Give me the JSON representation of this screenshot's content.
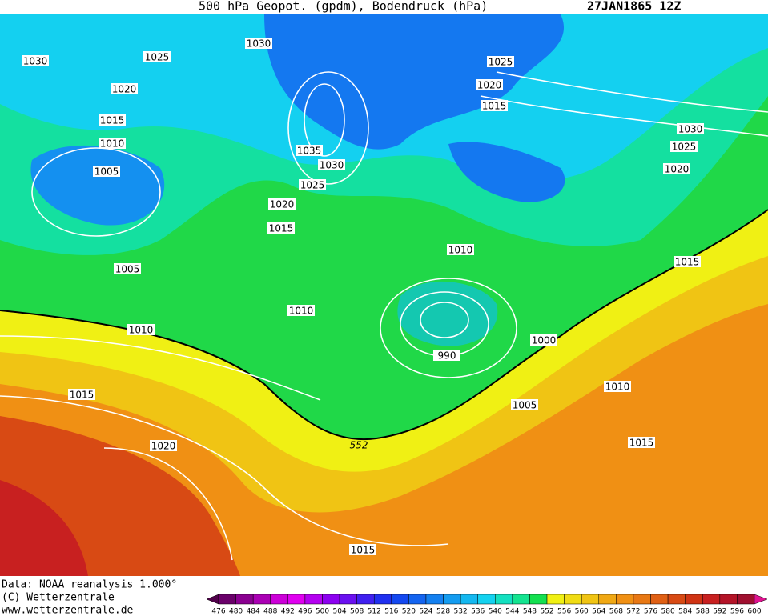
{
  "header": {
    "title": "500 hPa Geopot. (gpdm), Bodendruck (hPa)",
    "date": "27JAN1865 12Z"
  },
  "isobar_labels": [
    1030,
    1025,
    1030,
    1020,
    1015,
    1010,
    1005,
    1035,
    1030,
    1025,
    1020,
    1015,
    1005,
    1010,
    1010,
    1015,
    1020,
    990,
    1010,
    1025,
    1020,
    1015,
    1030,
    1025,
    1020,
    1015,
    1000,
    1010,
    1005,
    1015,
    1015
  ],
  "contour_label": 552,
  "footer": [
    "Data: NOAA reanalysis 1.000°",
    "(C) Wetterzentrale",
    "www.wetterzentrale.de"
  ],
  "colorbar": {
    "labels": [
      476,
      480,
      484,
      488,
      492,
      496,
      500,
      504,
      508,
      512,
      516,
      520,
      524,
      528,
      532,
      536,
      540,
      544,
      548,
      552,
      556,
      560,
      564,
      568,
      572,
      576,
      580,
      584,
      588,
      592,
      596,
      600
    ],
    "colors": [
      "#50004a",
      "#6a006a",
      "#8a0090",
      "#aa00b4",
      "#cc00d8",
      "#e000f0",
      "#b400f0",
      "#8c00f0",
      "#6a10f0",
      "#4020f0",
      "#2030f0",
      "#1448f0",
      "#1464f0",
      "#1480f0",
      "#149cf0",
      "#14b8f0",
      "#14d2f0",
      "#14e0c0",
      "#14e490",
      "#14e050",
      "#f0f014",
      "#f0dc14",
      "#f0c414",
      "#f0a814",
      "#f09014",
      "#e87814",
      "#e06014",
      "#d84a14",
      "#d03414",
      "#c82020",
      "#b41428",
      "#a01030",
      "#e01490"
    ]
  }
}
